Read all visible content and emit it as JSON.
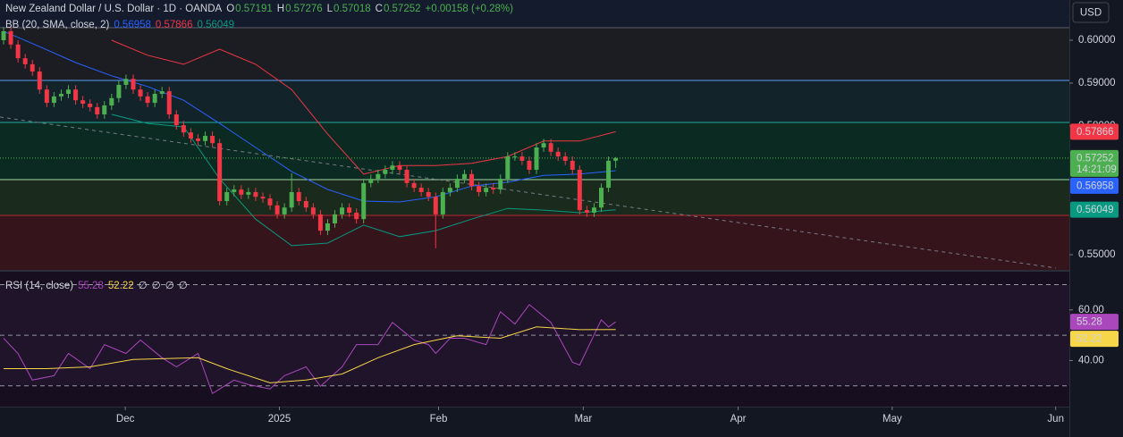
{
  "chart_data": [
    {
      "type": "candlestick",
      "title": "New Zealand Dollar / U.S. Dollar · 1D · OANDA",
      "ohlc_labels": [
        "O",
        "H",
        "L",
        "C"
      ],
      "change": "+0.00158 (+0.28%)",
      "currency": "USD",
      "countdown": "14:21:09",
      "up_color": "#4caf50",
      "down_color": "#f23645",
      "x": [
        0,
        1,
        2,
        3,
        4,
        5,
        6,
        7,
        8,
        9,
        10,
        11,
        12,
        13,
        14,
        15,
        16,
        17,
        18,
        19,
        20,
        21,
        22,
        23,
        24,
        25,
        26,
        27,
        28,
        29,
        30,
        31,
        32,
        33,
        34,
        35,
        36,
        37,
        38,
        39,
        40,
        41,
        42,
        43,
        44,
        45,
        46,
        47,
        48,
        49,
        50,
        51,
        52,
        53,
        54,
        55,
        56,
        57,
        58,
        59,
        60,
        61,
        62,
        63,
        64,
        65,
        66,
        67,
        68,
        69,
        70,
        71,
        72,
        73,
        74,
        75,
        76,
        77,
        78,
        79,
        80,
        81,
        82,
        83,
        84,
        85
      ],
      "open": [
        0.6,
        0.6021,
        0.599,
        0.5958,
        0.5944,
        0.5927,
        0.5885,
        0.5854,
        0.5869,
        0.5875,
        0.5885,
        0.586,
        0.5852,
        0.5844,
        0.5827,
        0.5848,
        0.5865,
        0.5896,
        0.591,
        0.5885,
        0.5869,
        0.5854,
        0.5875,
        0.5881,
        0.5827,
        0.5802,
        0.5785,
        0.5771,
        0.5765,
        0.5777,
        0.576,
        0.5625,
        0.5646,
        0.5652,
        0.564,
        0.5646,
        0.5635,
        0.5631,
        0.5615,
        0.5594,
        0.561,
        0.5646,
        0.5625,
        0.561,
        0.5594,
        0.5556,
        0.5573,
        0.5594,
        0.561,
        0.5598,
        0.5583,
        0.5667,
        0.5677,
        0.5688,
        0.5698,
        0.5708,
        0.5698,
        0.5667,
        0.5656,
        0.5646,
        0.5635,
        0.5594,
        0.5646,
        0.5656,
        0.5677,
        0.5688,
        0.566,
        0.5646,
        0.5656,
        0.5652,
        0.5677,
        0.5729,
        0.5729,
        0.5719,
        0.5698,
        0.575,
        0.576,
        0.574,
        0.5729,
        0.5719,
        0.5698,
        0.5604,
        0.5598,
        0.561,
        0.5656,
        0.57191
      ],
      "high": [
        0.6031,
        0.6031,
        0.6,
        0.5968,
        0.5954,
        0.5937,
        0.5895,
        0.5879,
        0.5885,
        0.5895,
        0.5895,
        0.587,
        0.5862,
        0.5854,
        0.5858,
        0.5875,
        0.5906,
        0.592,
        0.592,
        0.5895,
        0.5879,
        0.5885,
        0.5891,
        0.5891,
        0.5837,
        0.5812,
        0.5795,
        0.5781,
        0.5787,
        0.5787,
        0.577,
        0.5656,
        0.5662,
        0.5662,
        0.5656,
        0.5656,
        0.5645,
        0.5641,
        0.5625,
        0.562,
        0.569,
        0.5656,
        0.5635,
        0.562,
        0.5604,
        0.5583,
        0.5604,
        0.562,
        0.562,
        0.5608,
        0.5677,
        0.5687,
        0.5698,
        0.5708,
        0.5718,
        0.5718,
        0.5708,
        0.5677,
        0.5666,
        0.5656,
        0.5645,
        0.5656,
        0.5666,
        0.5687,
        0.5698,
        0.5698,
        0.567,
        0.5666,
        0.5666,
        0.5687,
        0.5739,
        0.5739,
        0.5739,
        0.5729,
        0.576,
        0.577,
        0.577,
        0.575,
        0.5739,
        0.5729,
        0.5708,
        0.5614,
        0.562,
        0.5666,
        0.5729,
        0.57276
      ],
      "low": [
        0.599,
        0.598,
        0.5948,
        0.5934,
        0.5917,
        0.5875,
        0.5844,
        0.5844,
        0.5859,
        0.5865,
        0.585,
        0.5842,
        0.5834,
        0.5817,
        0.5817,
        0.5838,
        0.5855,
        0.5886,
        0.5875,
        0.5859,
        0.5844,
        0.5844,
        0.5865,
        0.5817,
        0.5792,
        0.5775,
        0.5761,
        0.5755,
        0.5755,
        0.575,
        0.5615,
        0.5615,
        0.5636,
        0.563,
        0.563,
        0.5625,
        0.5621,
        0.5605,
        0.5584,
        0.5584,
        0.56,
        0.5615,
        0.56,
        0.5584,
        0.5546,
        0.5546,
        0.5563,
        0.5584,
        0.5588,
        0.5573,
        0.5573,
        0.5657,
        0.5667,
        0.5678,
        0.5688,
        0.5688,
        0.5657,
        0.5646,
        0.5636,
        0.5625,
        0.5515,
        0.5584,
        0.5636,
        0.5646,
        0.5667,
        0.565,
        0.5636,
        0.5636,
        0.5642,
        0.5642,
        0.5667,
        0.5719,
        0.5709,
        0.5688,
        0.5688,
        0.574,
        0.573,
        0.5719,
        0.5709,
        0.5688,
        0.5594,
        0.5588,
        0.5588,
        0.56,
        0.5646,
        0.57018
      ],
      "close": [
        0.6021,
        0.599,
        0.5958,
        0.5944,
        0.5927,
        0.5885,
        0.5854,
        0.5869,
        0.5875,
        0.5885,
        0.586,
        0.5852,
        0.5844,
        0.5827,
        0.5848,
        0.5865,
        0.5896,
        0.591,
        0.5885,
        0.5869,
        0.5854,
        0.5875,
        0.5881,
        0.5827,
        0.5802,
        0.5785,
        0.5771,
        0.5765,
        0.5777,
        0.576,
        0.5625,
        0.5646,
        0.5652,
        0.564,
        0.5646,
        0.5635,
        0.5631,
        0.5615,
        0.5594,
        0.561,
        0.5646,
        0.5625,
        0.561,
        0.5594,
        0.5556,
        0.5573,
        0.5594,
        0.561,
        0.5598,
        0.5583,
        0.5667,
        0.5677,
        0.5688,
        0.5698,
        0.5708,
        0.5698,
        0.5667,
        0.5656,
        0.5646,
        0.5635,
        0.5594,
        0.5646,
        0.5656,
        0.5677,
        0.5688,
        0.566,
        0.5646,
        0.5656,
        0.5652,
        0.5677,
        0.5729,
        0.5729,
        0.5719,
        0.5698,
        0.575,
        0.576,
        0.574,
        0.5729,
        0.5719,
        0.5698,
        0.5604,
        0.5598,
        0.561,
        0.5656,
        0.57191,
        0.57252
      ],
      "xlim": [
        -0.5,
        148
      ],
      "ylim": [
        0.54646,
        0.609375
      ],
      "yticks": [
        {
          "value": 0.6,
          "label": "0.60000"
        },
        {
          "value": 0.59,
          "label": "0.59000"
        },
        {
          "value": 0.58,
          "label": "0.58000"
        },
        {
          "value": 0.55,
          "label": "0.55000"
        }
      ],
      "xticks": [
        {
          "value": 16.9,
          "label": "Dec"
        },
        {
          "value": 38.3,
          "label": "2025"
        },
        {
          "value": 60.4,
          "label": "Feb"
        },
        {
          "value": 80.5,
          "label": "Mar"
        },
        {
          "value": 102,
          "label": "Apr"
        },
        {
          "value": 123.4,
          "label": "May"
        },
        {
          "value": 146.1,
          "label": "Jun"
        }
      ],
      "levels": [
        {
          "value": 0.60292,
          "color": "#5d606b"
        },
        {
          "value": 0.59063,
          "color": "#5b9cf6"
        },
        {
          "value": 0.58083,
          "color": "#22ab94"
        },
        {
          "value": 0.5675,
          "color": "#a5d6a7"
        },
        {
          "value": 0.55917,
          "color": "#b22833"
        }
      ],
      "zones": [
        "#141b2d",
        "#1b1d23",
        "#12232a",
        "#0b2a22",
        "#1a2a1c",
        "#35141b"
      ],
      "trendline": {
        "x": [
          -0.5,
          146.1
        ],
        "y": [
          0.5821,
          0.5469
        ],
        "color": "#787b86"
      },
      "indicator": {
        "title": "BB (20, SMA, close, 2)",
        "basis": {
          "color": "#2962ff",
          "x": [
            0,
            5,
            10,
            15,
            20,
            25,
            30,
            35,
            40,
            45,
            50,
            55,
            60,
            65,
            70,
            75,
            80,
            85
          ],
          "values": [
            0.6021,
            0.5985,
            0.5948,
            0.5917,
            0.5892,
            0.586,
            0.5806,
            0.575,
            0.5694,
            0.5652,
            0.5625,
            0.5623,
            0.5635,
            0.566,
            0.5669,
            0.5685,
            0.5688,
            0.56958
          ]
        },
        "upper": {
          "color": "#f23645",
          "x": [
            15,
            20,
            25,
            30,
            35,
            40,
            45,
            50,
            55,
            60,
            65,
            70,
            75,
            80,
            85
          ],
          "values": [
            0.6,
            0.5965,
            0.5944,
            0.5979,
            0.5944,
            0.5885,
            0.5781,
            0.5688,
            0.5708,
            0.5708,
            0.5713,
            0.5729,
            0.5765,
            0.5765,
            0.57866
          ]
        },
        "lower": {
          "color": "#089981",
          "x": [
            15,
            20,
            25,
            30,
            35,
            40,
            45,
            50,
            55,
            60,
            65,
            70,
            75,
            80,
            85
          ],
          "values": [
            0.5827,
            0.5806,
            0.5798,
            0.5677,
            0.5583,
            0.5521,
            0.5527,
            0.5569,
            0.5542,
            0.5556,
            0.5583,
            0.5608,
            0.5604,
            0.5598,
            0.56049
          ]
        }
      }
    },
    {
      "type": "line",
      "title": "RSI (14, close)",
      "status_icons": [
        "∅",
        "∅",
        "∅",
        "∅"
      ],
      "background": "#170f20",
      "band_color": "#1f1429",
      "bands": [
        70,
        50,
        30
      ],
      "ylim": [
        21.8,
        75.1
      ],
      "yticks": [
        {
          "value": 60,
          "label": "60.00"
        },
        {
          "value": 40,
          "label": "40.00"
        }
      ],
      "series": [
        {
          "color": "#ab47bc",
          "x": [
            0,
            2,
            4,
            7,
            9,
            12,
            14,
            17,
            19,
            22,
            24,
            27,
            29,
            32,
            34,
            37,
            39,
            42,
            44,
            47,
            49,
            52,
            54,
            57,
            59,
            60,
            62,
            64,
            67,
            69,
            71,
            73,
            76,
            79,
            80,
            83,
            84,
            85
          ],
          "values": [
            48.8,
            42.8,
            32.3,
            34.0,
            42.8,
            36.8,
            46.3,
            42.8,
            48.1,
            41.1,
            37.5,
            42.8,
            27.0,
            32.3,
            30.5,
            28.8,
            34.0,
            37.5,
            29.8,
            37.5,
            46.3,
            46.3,
            55.1,
            48.1,
            46.3,
            42.8,
            48.8,
            48.8,
            46.3,
            59.3,
            54.4,
            62.1,
            55.1,
            39.3,
            38.2,
            56.1,
            53.3,
            55.28
          ]
        },
        {
          "color": "#f7d64a",
          "x": [
            0,
            6,
            12,
            18,
            27,
            31,
            37,
            42,
            47,
            52,
            57,
            63,
            69,
            74,
            80,
            85
          ],
          "values": [
            36.8,
            36.8,
            37.5,
            40.4,
            41.1,
            36.8,
            31.2,
            32.3,
            34.7,
            41.1,
            46.3,
            49.8,
            48.8,
            53.3,
            52.2,
            52.22
          ]
        }
      ]
    }
  ]
}
